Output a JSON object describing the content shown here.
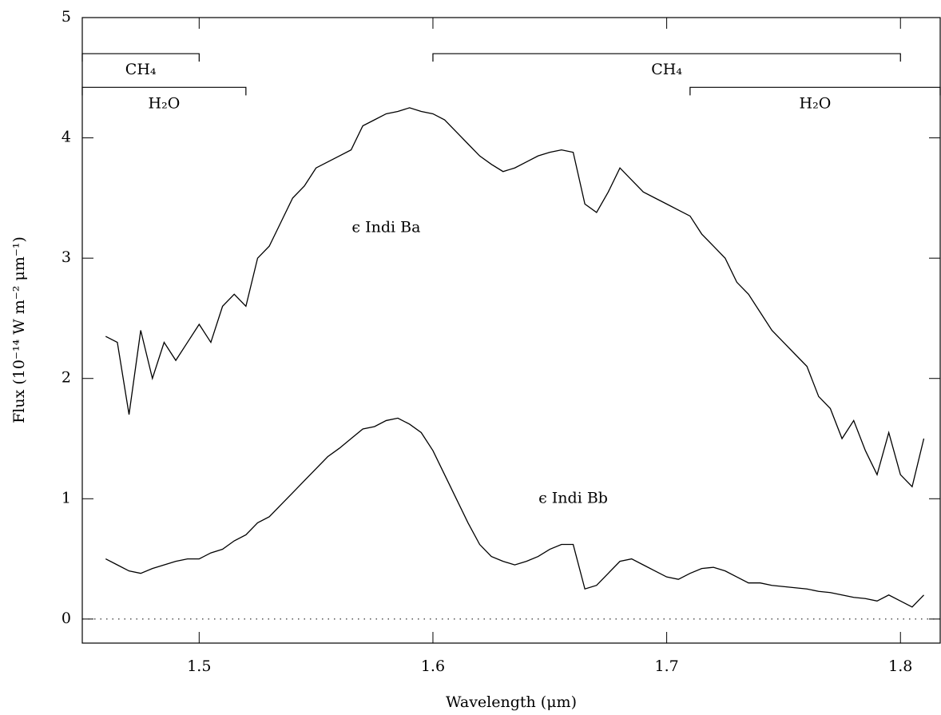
{
  "chart_data": {
    "type": "line",
    "xlabel": "Wavelength (μm)",
    "ylabel": "Flux (10⁻¹⁴ W m⁻² μm⁻¹)",
    "xlim": [
      1.45,
      1.817
    ],
    "ylim": [
      -0.2,
      5
    ],
    "xticks": [
      1.5,
      1.6,
      1.7,
      1.8
    ],
    "yticks": [
      0,
      1,
      2,
      3,
      4,
      5
    ],
    "reference_line": 0,
    "x": [
      1.46,
      1.465,
      1.47,
      1.475,
      1.48,
      1.485,
      1.49,
      1.495,
      1.5,
      1.505,
      1.51,
      1.515,
      1.52,
      1.525,
      1.53,
      1.535,
      1.54,
      1.545,
      1.55,
      1.555,
      1.56,
      1.565,
      1.57,
      1.575,
      1.58,
      1.585,
      1.59,
      1.595,
      1.6,
      1.605,
      1.61,
      1.615,
      1.62,
      1.625,
      1.63,
      1.635,
      1.64,
      1.645,
      1.65,
      1.655,
      1.66,
      1.665,
      1.67,
      1.675,
      1.68,
      1.685,
      1.69,
      1.695,
      1.7,
      1.705,
      1.71,
      1.715,
      1.72,
      1.725,
      1.73,
      1.735,
      1.74,
      1.745,
      1.75,
      1.755,
      1.76,
      1.765,
      1.77,
      1.775,
      1.78,
      1.785,
      1.79,
      1.795,
      1.8,
      1.805,
      1.81
    ],
    "series": [
      {
        "name": "ϵ Indi Ba",
        "color": "#000000",
        "label_at": [
          1.58,
          3.25
        ],
        "values": [
          2.35,
          2.3,
          1.7,
          2.4,
          2.0,
          2.3,
          2.15,
          2.3,
          2.45,
          2.3,
          2.6,
          2.7,
          2.6,
          3.0,
          3.1,
          3.3,
          3.5,
          3.6,
          3.75,
          3.8,
          3.85,
          3.9,
          4.1,
          4.15,
          4.2,
          4.22,
          4.25,
          4.22,
          4.2,
          4.15,
          4.05,
          3.95,
          3.85,
          3.78,
          3.72,
          3.75,
          3.8,
          3.85,
          3.88,
          3.9,
          3.88,
          3.45,
          3.38,
          3.55,
          3.75,
          3.65,
          3.55,
          3.5,
          3.45,
          3.4,
          3.35,
          3.2,
          3.1,
          3.0,
          2.8,
          2.7,
          2.55,
          2.4,
          2.3,
          2.2,
          2.1,
          1.85,
          1.75,
          1.5,
          1.65,
          1.4,
          1.2,
          1.55,
          1.2,
          1.1,
          1.5
        ]
      },
      {
        "name": "ϵ Indi Bb",
        "color": "#000000",
        "label_at": [
          1.66,
          1.0
        ],
        "values": [
          0.5,
          0.45,
          0.4,
          0.38,
          0.42,
          0.45,
          0.48,
          0.5,
          0.5,
          0.55,
          0.58,
          0.65,
          0.7,
          0.8,
          0.85,
          0.95,
          1.05,
          1.15,
          1.25,
          1.35,
          1.42,
          1.5,
          1.58,
          1.6,
          1.65,
          1.67,
          1.62,
          1.55,
          1.4,
          1.2,
          1.0,
          0.8,
          0.62,
          0.52,
          0.48,
          0.45,
          0.48,
          0.52,
          0.58,
          0.62,
          0.62,
          0.25,
          0.28,
          0.38,
          0.48,
          0.5,
          0.45,
          0.4,
          0.35,
          0.33,
          0.38,
          0.42,
          0.43,
          0.4,
          0.35,
          0.3,
          0.3,
          0.28,
          0.27,
          0.26,
          0.25,
          0.23,
          0.22,
          0.2,
          0.18,
          0.17,
          0.15,
          0.2,
          0.15,
          0.1,
          0.2
        ]
      }
    ],
    "bands": [
      {
        "label": "CH₄",
        "x": [
          1.45,
          1.5
        ],
        "y": 4.7
      },
      {
        "label": "H₂O",
        "x": [
          1.45,
          1.52
        ],
        "y": 4.42
      },
      {
        "label": "CH₄",
        "x": [
          1.6,
          1.8
        ],
        "y": 4.7
      },
      {
        "label": "H₂O",
        "x": [
          1.71,
          1.817
        ],
        "y": 4.42
      }
    ]
  }
}
